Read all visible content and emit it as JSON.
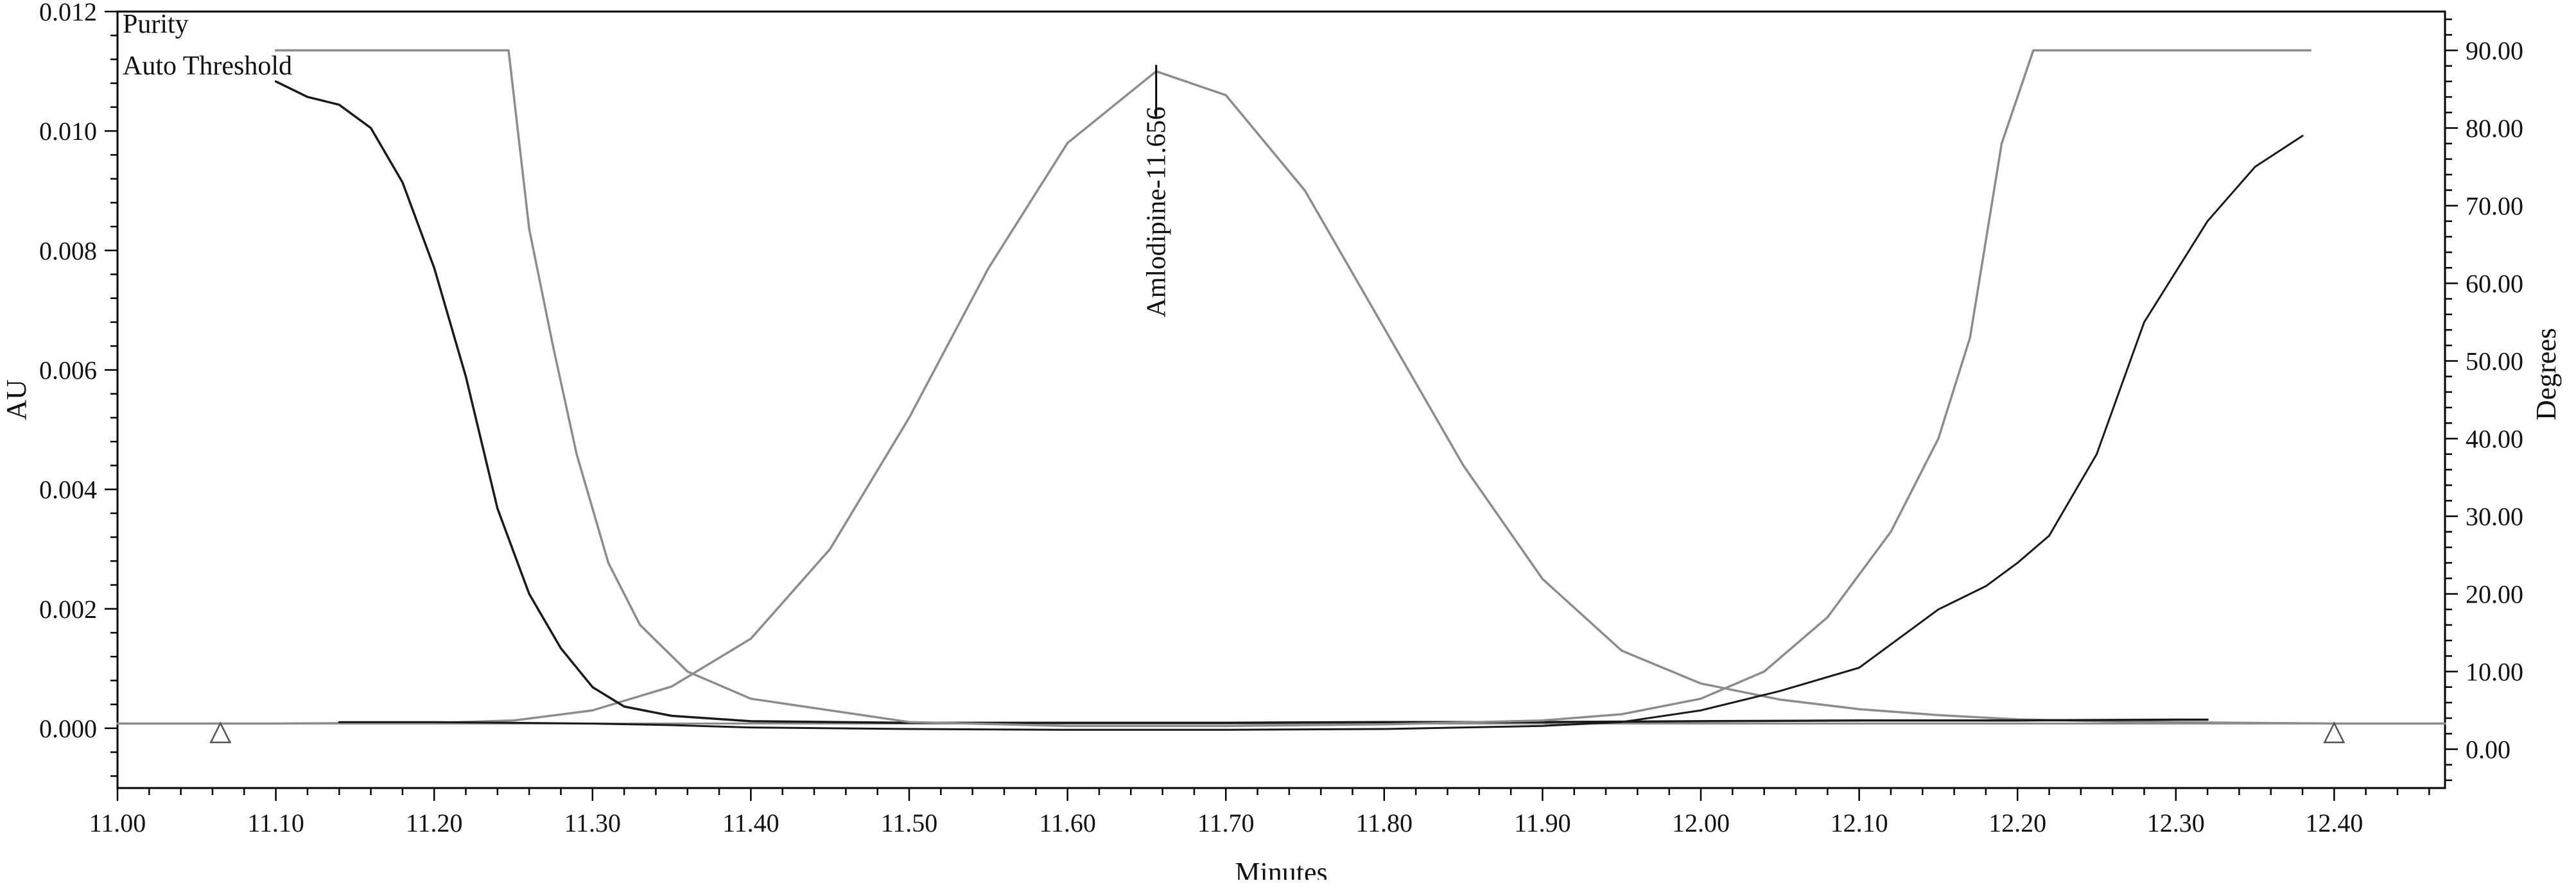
{
  "chart_data": {
    "type": "line",
    "xlabel": "Minutes",
    "ylabel": "AU",
    "y2label": "Degrees",
    "xlim": [
      11.0,
      12.47
    ],
    "ylim": [
      -0.001,
      0.012
    ],
    "y2lim": [
      -5.0,
      95.0
    ],
    "x_ticks": [
      "11.00",
      "11.10",
      "11.20",
      "11.30",
      "11.40",
      "11.50",
      "11.60",
      "11.70",
      "11.80",
      "11.90",
      "12.00",
      "12.10",
      "12.20",
      "12.30",
      "12.40"
    ],
    "y_ticks": [
      "0.000",
      "0.002",
      "0.004",
      "0.006",
      "0.008",
      "0.010",
      "0.012"
    ],
    "y2_ticks": [
      "0.00",
      "10.00",
      "20.00",
      "30.00",
      "40.00",
      "50.00",
      "60.00",
      "70.00",
      "80.00",
      "90.00"
    ],
    "legend": [
      "Purity",
      "Auto Threshold"
    ],
    "legend_position": "top-left",
    "grid": false,
    "colors": {
      "absorbance": "#8c8c8c",
      "baseline": "#8c8c8c",
      "purity": "#1a1a1a",
      "threshold": "#8c8c8c",
      "axes": "#000000"
    },
    "peak_annotation": {
      "label": "Amlodipine-11.656",
      "x": 11.656,
      "y": 0.011
    },
    "integration_marks": [
      {
        "x": 11.065,
        "y": 0.0
      },
      {
        "x": 12.4,
        "y": 0.0
      }
    ],
    "series": [
      {
        "axis": "left",
        "x": [
          11.0,
          11.1,
          11.2,
          11.25,
          11.3,
          11.35,
          11.4,
          11.45,
          11.5,
          11.55,
          11.6,
          11.656,
          11.7,
          11.75,
          11.8,
          11.85,
          11.9,
          11.95,
          12.0,
          12.05,
          12.1,
          12.15,
          12.2,
          12.25,
          12.3,
          12.4,
          12.47
        ],
        "values": [
          8e-05,
          8e-05,
          9e-05,
          0.00013,
          0.0003,
          0.0007,
          0.0015,
          0.003,
          0.0052,
          0.0077,
          0.0098,
          0.011,
          0.0106,
          0.009,
          0.0067,
          0.0044,
          0.0025,
          0.0013,
          0.00075,
          0.00048,
          0.00032,
          0.00022,
          0.00015,
          0.00012,
          0.0001,
          8e-05,
          8e-05
        ]
      },
      {
        "axis": "left",
        "x": [
          11.0,
          12.47
        ],
        "values": [
          8e-05,
          8e-05
        ]
      },
      {
        "axis": "right",
        "x": [
          11.14,
          11.2,
          11.25,
          11.3,
          11.35,
          11.4,
          11.5,
          11.6,
          11.7,
          11.8,
          11.9,
          11.95,
          12.0,
          12.05,
          12.1,
          12.15,
          12.18,
          12.2,
          12.22,
          12.25,
          12.28,
          12.32,
          12.35,
          12.38
        ],
        "values": [
          3.5,
          3.5,
          3.4,
          3.3,
          3.1,
          2.8,
          2.6,
          2.5,
          2.5,
          2.6,
          3.0,
          3.5,
          5.0,
          7.5,
          10.5,
          18.0,
          21.0,
          24.0,
          27.5,
          38.0,
          55.0,
          68.0,
          75.0,
          79.0
        ]
      },
      {
        "axis": "right",
        "x": [
          11.1,
          11.12,
          11.14,
          11.16,
          11.18,
          11.2,
          11.22,
          11.24,
          11.26,
          11.28,
          11.3,
          11.32,
          11.35,
          11.4,
          11.5,
          11.6,
          11.7,
          11.8,
          11.9,
          12.0,
          12.1,
          12.2,
          12.3,
          12.32
        ],
        "values": [
          86.0,
          84.0,
          83.0,
          80.0,
          73.0,
          62.0,
          48.0,
          31.0,
          20.0,
          13.0,
          8.0,
          5.5,
          4.3,
          3.6,
          3.4,
          3.4,
          3.4,
          3.5,
          3.5,
          3.6,
          3.7,
          3.7,
          3.8,
          3.8
        ]
      },
      {
        "axis": "right",
        "x": [
          11.1,
          11.247,
          11.26,
          11.275,
          11.29,
          11.31,
          11.33,
          11.36,
          11.4,
          11.5,
          11.6,
          11.7,
          11.8,
          11.9,
          11.95,
          12.0,
          12.04,
          12.08,
          12.12,
          12.15,
          12.17,
          12.19,
          12.21,
          12.385
        ],
        "values": [
          90.0,
          90.0,
          67.0,
          52.0,
          38.0,
          24.0,
          16.0,
          10.0,
          6.5,
          3.5,
          3.0,
          3.0,
          3.2,
          3.7,
          4.5,
          6.5,
          10.0,
          17.0,
          28.0,
          40.0,
          53.0,
          78.0,
          90.0,
          90.0
        ]
      }
    ]
  }
}
